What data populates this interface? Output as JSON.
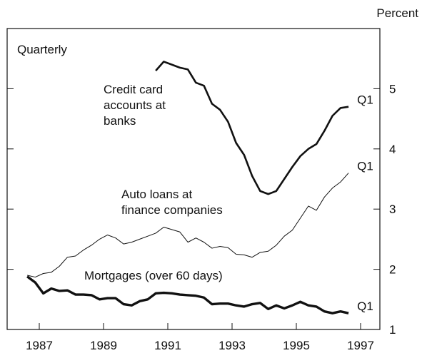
{
  "chart_data": {
    "type": "line",
    "unit_label": "Percent",
    "frequency_label": "Quarterly",
    "xlim": [
      1986,
      1997.6
    ],
    "ylim": [
      1,
      6
    ],
    "xticks": [
      1987,
      1989,
      1991,
      1993,
      1995,
      1997
    ],
    "yticks": [
      1,
      2,
      3,
      4,
      5
    ],
    "series": [
      {
        "name_lines": [
          "Credit card",
          "accounts at",
          "banks"
        ],
        "end_label": "Q1",
        "color": "#111",
        "width": 2.6,
        "x": [
          1990.625,
          1990.875,
          1991.125,
          1991.375,
          1991.625,
          1991.875,
          1992.125,
          1992.375,
          1992.625,
          1992.875,
          1993.125,
          1993.375,
          1993.625,
          1993.875,
          1994.125,
          1994.375,
          1994.625,
          1994.875,
          1995.125,
          1995.375,
          1995.625,
          1995.875,
          1996.125,
          1996.375,
          1996.625
        ],
        "values": [
          5.3,
          5.45,
          5.4,
          5.35,
          5.32,
          5.1,
          5.05,
          4.75,
          4.65,
          4.45,
          4.1,
          3.9,
          3.55,
          3.3,
          3.25,
          3.3,
          3.5,
          3.7,
          3.88,
          4.0,
          4.08,
          4.3,
          4.55,
          4.68,
          4.7
        ]
      },
      {
        "name_lines": [
          "Auto loans at",
          "finance companies"
        ],
        "end_label": "Q1",
        "color": "#111",
        "width": 1,
        "x": [
          1986.625,
          1986.875,
          1987.125,
          1987.375,
          1987.625,
          1987.875,
          1988.125,
          1988.375,
          1988.625,
          1988.875,
          1989.125,
          1989.375,
          1989.625,
          1989.875,
          1990.125,
          1990.375,
          1990.625,
          1990.875,
          1991.125,
          1991.375,
          1991.625,
          1991.875,
          1992.125,
          1992.375,
          1992.625,
          1992.875,
          1993.125,
          1993.375,
          1993.625,
          1993.875,
          1994.125,
          1994.375,
          1994.625,
          1994.875,
          1995.125,
          1995.375,
          1995.625,
          1995.875,
          1996.125,
          1996.375,
          1996.625
        ],
        "values": [
          1.9,
          1.87,
          1.93,
          1.95,
          2.05,
          2.2,
          2.22,
          2.32,
          2.4,
          2.5,
          2.57,
          2.52,
          2.42,
          2.45,
          2.5,
          2.55,
          2.6,
          2.7,
          2.66,
          2.62,
          2.45,
          2.52,
          2.45,
          2.35,
          2.38,
          2.36,
          2.25,
          2.24,
          2.2,
          2.28,
          2.3,
          2.4,
          2.55,
          2.65,
          2.85,
          3.05,
          2.98,
          3.2,
          3.35,
          3.45,
          3.6
        ]
      },
      {
        "name_lines": [
          "Mortgages (over 60 days)"
        ],
        "end_label": "Q1",
        "color": "#111",
        "width": 3.4,
        "x": [
          1986.625,
          1986.875,
          1987.125,
          1987.375,
          1987.625,
          1987.875,
          1988.125,
          1988.375,
          1988.625,
          1988.875,
          1989.125,
          1989.375,
          1989.625,
          1989.875,
          1990.125,
          1990.375,
          1990.625,
          1990.875,
          1991.125,
          1991.375,
          1991.625,
          1991.875,
          1992.125,
          1992.375,
          1992.625,
          1992.875,
          1993.125,
          1993.375,
          1993.625,
          1993.875,
          1994.125,
          1994.375,
          1994.625,
          1994.875,
          1995.125,
          1995.375,
          1995.625,
          1995.875,
          1996.125,
          1996.375,
          1996.625
        ],
        "values": [
          1.88,
          1.78,
          1.6,
          1.68,
          1.64,
          1.65,
          1.58,
          1.58,
          1.57,
          1.5,
          1.52,
          1.52,
          1.42,
          1.4,
          1.47,
          1.5,
          1.6,
          1.61,
          1.6,
          1.58,
          1.57,
          1.56,
          1.53,
          1.42,
          1.43,
          1.43,
          1.4,
          1.38,
          1.42,
          1.44,
          1.34,
          1.4,
          1.35,
          1.4,
          1.46,
          1.4,
          1.38,
          1.3,
          1.27,
          1.3,
          1.27
        ]
      }
    ]
  }
}
